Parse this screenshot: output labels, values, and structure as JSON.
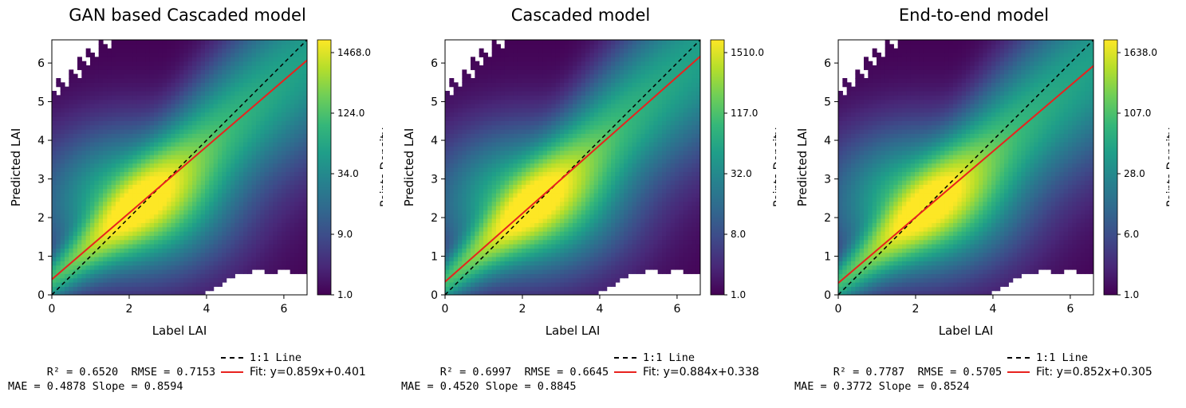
{
  "colorbar_label": "Points Density",
  "chart_data": [
    {
      "type": "heatmap",
      "title": "GAN based Cascaded model",
      "xlabel": "Label LAI",
      "ylabel": "Predicted LAI",
      "xlim": [
        0,
        6.6
      ],
      "ylim": [
        0,
        6.6
      ],
      "xticks": [
        "0",
        "2",
        "4",
        "6"
      ],
      "yticks": [
        "0",
        "1",
        "2",
        "3",
        "4",
        "5",
        "6"
      ],
      "colorbar_ticks": [
        "1468.0",
        "124.0",
        "34.0",
        "9.0",
        "1.0"
      ],
      "colormap": "viridis",
      "series": [
        {
          "name": "1:1 Line",
          "style": "dashed",
          "color": "#000000",
          "slope": 1,
          "intercept": 0
        },
        {
          "name": "Fit",
          "style": "solid",
          "color": "#e8221e",
          "slope": 0.859,
          "intercept": 0.401
        }
      ],
      "stats": {
        "r2": "R² = 0.6520",
        "rmse": "RMSE = 0.7153",
        "mae": "MAE = 0.4878",
        "slope": "Slope = 0.8594"
      },
      "legend": {
        "one_to_one": "1:1 Line",
        "fit": "Fit: y=0.859x+0.401"
      }
    },
    {
      "type": "heatmap",
      "title": "Cascaded model",
      "xlabel": "Label LAI",
      "ylabel": "Predicted LAI",
      "xlim": [
        0,
        6.6
      ],
      "ylim": [
        0,
        6.6
      ],
      "xticks": [
        "0",
        "2",
        "4",
        "6"
      ],
      "yticks": [
        "0",
        "1",
        "2",
        "3",
        "4",
        "5",
        "6"
      ],
      "colorbar_ticks": [
        "1510.0",
        "117.0",
        "32.0",
        "8.0",
        "1.0"
      ],
      "colormap": "viridis",
      "series": [
        {
          "name": "1:1 Line",
          "style": "dashed",
          "color": "#000000",
          "slope": 1,
          "intercept": 0
        },
        {
          "name": "Fit",
          "style": "solid",
          "color": "#e8221e",
          "slope": 0.884,
          "intercept": 0.338
        }
      ],
      "stats": {
        "r2": "R² = 0.6997",
        "rmse": "RMSE = 0.6645",
        "mae": "MAE = 0.4520",
        "slope": "Slope = 0.8845"
      },
      "legend": {
        "one_to_one": "1:1 Line",
        "fit": "Fit: y=0.884x+0.338"
      }
    },
    {
      "type": "heatmap",
      "title": "End-to-end model",
      "xlabel": "Label LAI",
      "ylabel": "Predicted LAI",
      "xlim": [
        0,
        6.6
      ],
      "ylim": [
        0,
        6.6
      ],
      "xticks": [
        "0",
        "2",
        "4",
        "6"
      ],
      "yticks": [
        "0",
        "1",
        "2",
        "3",
        "4",
        "5",
        "6"
      ],
      "colorbar_ticks": [
        "1638.0",
        "107.0",
        "28.0",
        "6.0",
        "1.0"
      ],
      "colormap": "viridis",
      "series": [
        {
          "name": "1:1 Line",
          "style": "dashed",
          "color": "#000000",
          "slope": 1,
          "intercept": 0
        },
        {
          "name": "Fit",
          "style": "solid",
          "color": "#e8221e",
          "slope": 0.852,
          "intercept": 0.305
        }
      ],
      "stats": {
        "r2": "R² = 0.7787",
        "rmse": "RMSE = 0.5705",
        "mae": "MAE = 0.3772",
        "slope": "Slope = 0.8524"
      },
      "legend": {
        "one_to_one": "1:1 Line",
        "fit": "Fit: y=0.852x+0.305"
      }
    }
  ]
}
